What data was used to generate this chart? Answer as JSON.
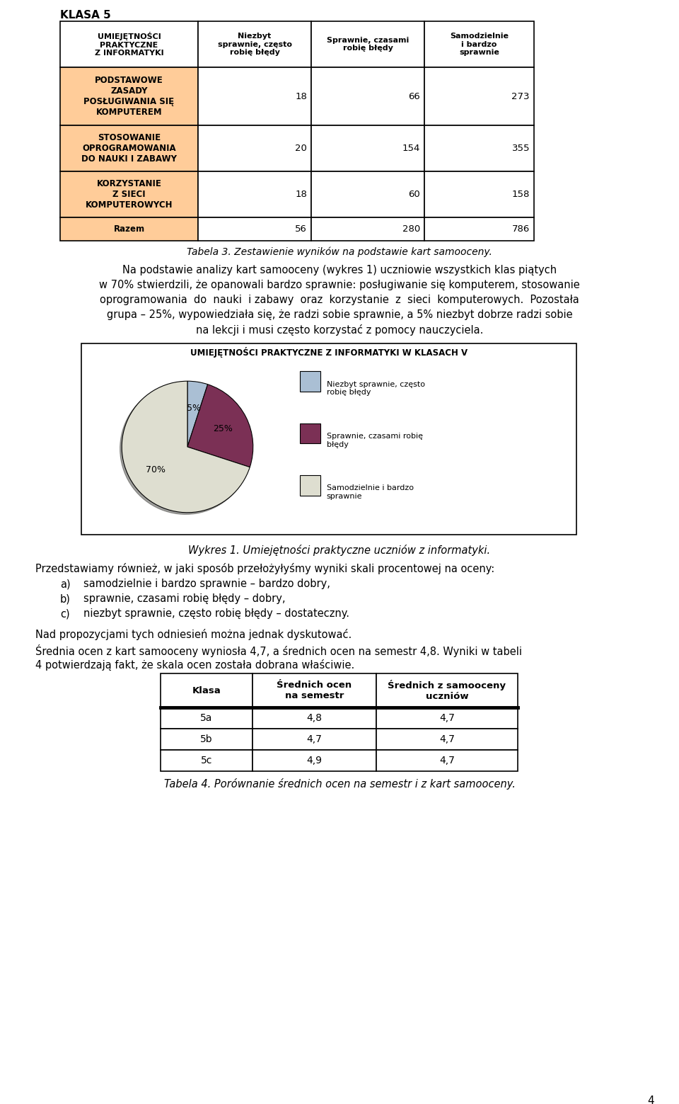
{
  "title_table1": "KLASA 5",
  "table1_col_headers": [
    "UMIEJĘTNOŚCI\nPRAKTYCZNE\nZ INFORMATYKI",
    "Niezbyt\nsprawnie, często\nrobię błędy",
    "Sprawnie, czasami\nrobię błędy",
    "Samodzielnie\ni bardzo\nsprawnie"
  ],
  "table1_rows": [
    [
      "PODSTAWOWE\nZASADY\nPOSŁUGIWANIA SIĘ\nKOMPUTEREM",
      "18",
      "66",
      "273"
    ],
    [
      "STOSOWANIE\nOPROGRAMOWANIA\nDO NAUKI I ZABAWY",
      "20",
      "154",
      "355"
    ],
    [
      "KORZYSTANIE\nZ SIECI\nKOMPUTEROWYCH",
      "18",
      "60",
      "158"
    ],
    [
      "Razem",
      "56",
      "280",
      "786"
    ]
  ],
  "table1_caption": "Tabela 3. Zestawienie wyników na podstawie kart samooceny.",
  "col_data_bg": "#FFCC99",
  "para1_line1": "Na podstawie analizy kart samooceny (wykres 1) uczniowie wszystkich klas piątych",
  "para1_line2": "w 70% stwierdzili, że opanowali bardzo sprawnie: posługiwanie się komputerem, stosowanie",
  "para1_line3": "oprogramowania  do  nauki  i zabawy  oraz  korzystanie  z  sieci  komputerowych.  Pozostała",
  "para1_line4": "grupa – 25%, wypowiedziała się, że radzi sobie sprawnie, a 5% niezbyt dobrze radzi sobie",
  "para1_line5": "na lekcji i musi często korzystać z pomocy nauczyciela.",
  "pie_title": "UMIEJĘTNOŚCI PRAKTYCZNE Z INFORMATYKI W KLASACH V",
  "pie_values": [
    5,
    25,
    70
  ],
  "pie_labels": [
    "5%",
    "25%",
    "70%"
  ],
  "pie_colors": [
    "#AABFD4",
    "#7B3055",
    "#DEDED0"
  ],
  "pie_legend_labels": [
    "Niezbyt sprawnie, często\nrobię błędy",
    "Sprawnie, czasami robię\nbłędy",
    "Samodzielnie i bardzo\nsprawnie"
  ],
  "pie_legend_colors": [
    "#AABFD4",
    "#7B3055",
    "#DEDED0"
  ],
  "pie_caption": "Wykres 1. Umiejętności praktyczne uczniów z informatyki.",
  "para2": "Przedstawiamy również, w jaki sposób przełożyłyśmy wyniki skali procentowej na oceny:",
  "list_a": "samodzielnie i bardzo sprawnie – bardzo dobry,",
  "list_b": "sprawnie, czasami robię błędy – dobry,",
  "list_c": "niezbyt sprawnie, często robię błędy – dostateczny.",
  "para3": "Nad propozycjami tych odniesień można jednak dyskutować.",
  "para4_line1": "Średnia ocen z kart samooceny wyniosła 4,7, a średnich ocen na semestr 4,8. Wyniki w tabeli",
  "para4_line2": "4 potwierdzają fakt, że skala ocen została dobrana właściwie.",
  "table2_col_headers": [
    "Klasa",
    "Średnich ocen\nna semestr",
    "Średnich z samooceny\nuczniów"
  ],
  "table2_rows": [
    [
      "5a",
      "4,8",
      "4,7"
    ],
    [
      "5b",
      "4,7",
      "4,7"
    ],
    [
      "5c",
      "4,9",
      "4,7"
    ]
  ],
  "table2_caption": "Tabela 4. Porównanie średnich ocen na semestr i z kart samooceny.",
  "page_number": "4",
  "bg_color": "#FFFFFF"
}
